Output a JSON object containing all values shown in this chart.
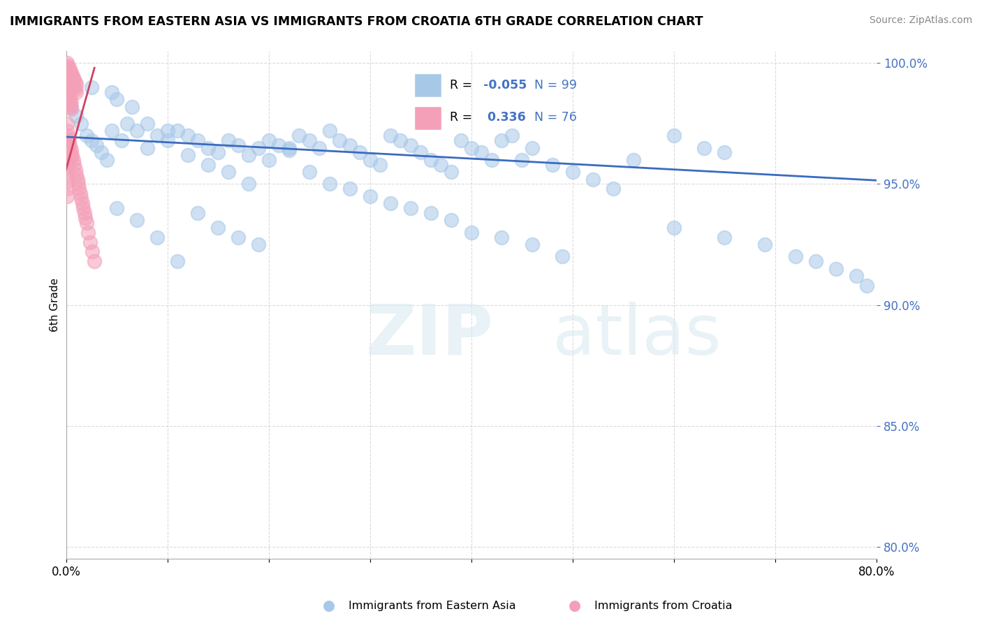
{
  "title": "IMMIGRANTS FROM EASTERN ASIA VS IMMIGRANTS FROM CROATIA 6TH GRADE CORRELATION CHART",
  "source": "Source: ZipAtlas.com",
  "ylabel": "6th Grade",
  "x_label_blue": "Immigrants from Eastern Asia",
  "x_label_pink": "Immigrants from Croatia",
  "legend_blue_R": "-0.055",
  "legend_blue_N": "99",
  "legend_pink_R": "0.336",
  "legend_pink_N": "76",
  "xlim": [
    0.0,
    0.8
  ],
  "ylim": [
    0.795,
    1.005
  ],
  "yticks": [
    0.8,
    0.85,
    0.9,
    0.95,
    1.0
  ],
  "ytick_labels": [
    "80.0%",
    "85.0%",
    "90.0%",
    "95.0%",
    "100.0%"
  ],
  "xticks": [
    0.0,
    0.1,
    0.2,
    0.3,
    0.4,
    0.5,
    0.6,
    0.7,
    0.8
  ],
  "xtick_labels": [
    "0.0%",
    "",
    "",
    "",
    "",
    "",
    "",
    "",
    "80.0%"
  ],
  "blue_scatter_x": [
    0.005,
    0.01,
    0.015,
    0.02,
    0.025,
    0.03,
    0.035,
    0.04,
    0.045,
    0.05,
    0.055,
    0.06,
    0.07,
    0.08,
    0.09,
    0.1,
    0.11,
    0.12,
    0.13,
    0.14,
    0.15,
    0.16,
    0.17,
    0.18,
    0.19,
    0.2,
    0.21,
    0.22,
    0.23,
    0.24,
    0.25,
    0.26,
    0.27,
    0.28,
    0.29,
    0.3,
    0.31,
    0.32,
    0.33,
    0.34,
    0.35,
    0.36,
    0.37,
    0.38,
    0.39,
    0.4,
    0.41,
    0.42,
    0.43,
    0.44,
    0.45,
    0.46,
    0.48,
    0.5,
    0.52,
    0.54,
    0.56,
    0.6,
    0.63,
    0.65,
    0.08,
    0.1,
    0.12,
    0.14,
    0.16,
    0.18,
    0.2,
    0.22,
    0.24,
    0.26,
    0.28,
    0.3,
    0.32,
    0.34,
    0.36,
    0.38,
    0.4,
    0.43,
    0.46,
    0.49,
    0.13,
    0.15,
    0.17,
    0.19,
    0.05,
    0.07,
    0.09,
    0.11,
    0.6,
    0.65,
    0.69,
    0.72,
    0.74,
    0.76,
    0.78,
    0.79,
    0.025,
    0.045,
    0.065
  ],
  "blue_scatter_y": [
    0.982,
    0.978,
    0.975,
    0.97,
    0.968,
    0.966,
    0.963,
    0.96,
    0.972,
    0.985,
    0.968,
    0.975,
    0.972,
    0.965,
    0.97,
    0.968,
    0.972,
    0.97,
    0.968,
    0.965,
    0.963,
    0.968,
    0.966,
    0.962,
    0.965,
    0.968,
    0.966,
    0.964,
    0.97,
    0.968,
    0.965,
    0.972,
    0.968,
    0.966,
    0.963,
    0.96,
    0.958,
    0.97,
    0.968,
    0.966,
    0.963,
    0.96,
    0.958,
    0.955,
    0.968,
    0.965,
    0.963,
    0.96,
    0.968,
    0.97,
    0.96,
    0.965,
    0.958,
    0.955,
    0.952,
    0.948,
    0.96,
    0.97,
    0.965,
    0.963,
    0.975,
    0.972,
    0.962,
    0.958,
    0.955,
    0.95,
    0.96,
    0.965,
    0.955,
    0.95,
    0.948,
    0.945,
    0.942,
    0.94,
    0.938,
    0.935,
    0.93,
    0.928,
    0.925,
    0.92,
    0.938,
    0.932,
    0.928,
    0.925,
    0.94,
    0.935,
    0.928,
    0.918,
    0.932,
    0.928,
    0.925,
    0.92,
    0.918,
    0.915,
    0.912,
    0.908,
    0.99,
    0.988,
    0.982
  ],
  "pink_scatter_x": [
    0.001,
    0.001,
    0.001,
    0.001,
    0.002,
    0.002,
    0.002,
    0.003,
    0.003,
    0.003,
    0.004,
    0.004,
    0.005,
    0.005,
    0.006,
    0.006,
    0.007,
    0.007,
    0.008,
    0.008,
    0.009,
    0.009,
    0.01,
    0.01,
    0.001,
    0.001,
    0.002,
    0.002,
    0.003,
    0.003,
    0.004,
    0.004,
    0.005,
    0.005,
    0.001,
    0.001,
    0.001,
    0.001,
    0.001,
    0.001,
    0.001,
    0.001,
    0.001,
    0.001,
    0.001,
    0.002,
    0.002,
    0.002,
    0.002,
    0.002,
    0.003,
    0.003,
    0.003,
    0.004,
    0.004,
    0.005,
    0.005,
    0.006,
    0.007,
    0.008,
    0.009,
    0.01,
    0.011,
    0.012,
    0.013,
    0.014,
    0.015,
    0.016,
    0.017,
    0.018,
    0.019,
    0.02,
    0.022,
    0.024,
    0.026,
    0.028
  ],
  "pink_scatter_y": [
    1.0,
    0.998,
    0.996,
    0.994,
    0.999,
    0.996,
    0.993,
    0.998,
    0.995,
    0.992,
    0.997,
    0.994,
    0.996,
    0.993,
    0.995,
    0.992,
    0.994,
    0.991,
    0.993,
    0.99,
    0.992,
    0.989,
    0.991,
    0.988,
    0.988,
    0.985,
    0.987,
    0.984,
    0.986,
    0.983,
    0.985,
    0.982,
    0.984,
    0.981,
    0.975,
    0.972,
    0.969,
    0.966,
    0.963,
    0.96,
    0.957,
    0.954,
    0.951,
    0.948,
    0.945,
    0.97,
    0.967,
    0.964,
    0.961,
    0.958,
    0.968,
    0.965,
    0.962,
    0.966,
    0.963,
    0.964,
    0.961,
    0.962,
    0.96,
    0.958,
    0.956,
    0.954,
    0.952,
    0.95,
    0.948,
    0.946,
    0.944,
    0.942,
    0.94,
    0.938,
    0.936,
    0.934,
    0.93,
    0.926,
    0.922,
    0.918
  ],
  "blue_line_x": [
    0.0,
    0.8
  ],
  "blue_line_y": [
    0.9695,
    0.9515
  ],
  "pink_line_x": [
    0.0,
    0.028
  ],
  "pink_line_y": [
    0.956,
    0.998
  ],
  "blue_color": "#a8c8e8",
  "pink_color": "#f4a0b8",
  "blue_line_color": "#3a6bbf",
  "pink_line_color": "#d44060",
  "watermark_zip": "ZIP",
  "watermark_atlas": "atlas",
  "background_color": "#ffffff",
  "grid_color": "#cccccc"
}
